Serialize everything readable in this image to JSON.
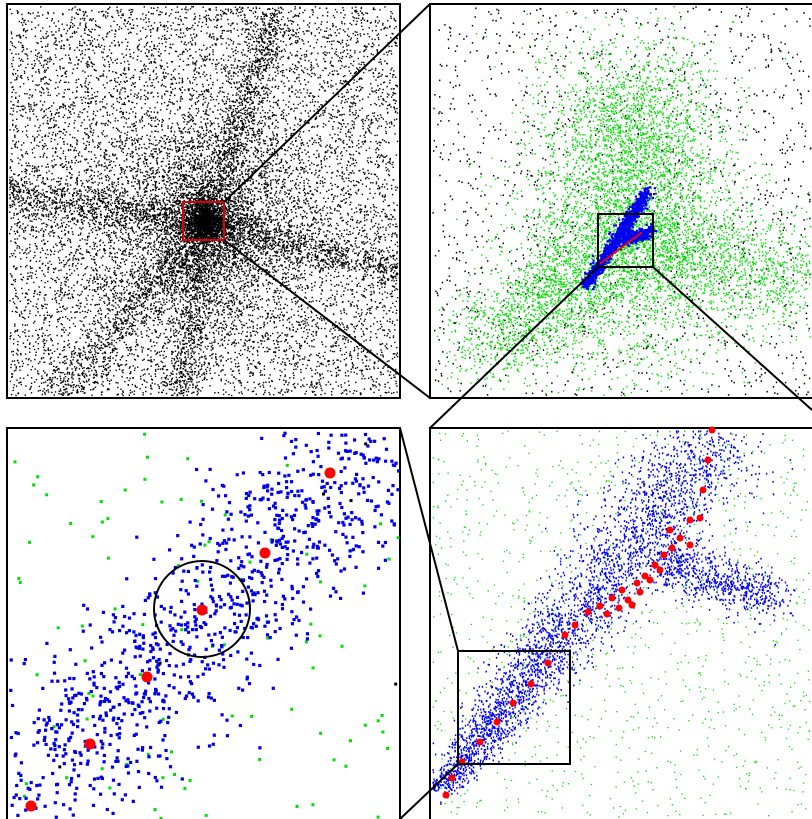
{
  "figure": {
    "description_visible_text": "",
    "colors": {
      "background": "#ffffff",
      "frame": "#000000",
      "dark_matter_particles": "#000000",
      "halo_particles": "#00e000",
      "filament_particles": "#0000ee",
      "substructure_markers": "#ff0000",
      "highlight_box": "#e00000"
    },
    "panels": [
      {
        "key": "top_left",
        "label_name": "full-simulation-panel",
        "particle_colors": [
          "dark_matter_particles"
        ],
        "has_zoom_box": true,
        "zoom_box_color": "highlight_box"
      },
      {
        "key": "top_right",
        "label_name": "zoom-level-1-panel",
        "particle_colors": [
          "dark_matter_particles",
          "halo_particles",
          "filament_particles",
          "substructure_markers"
        ],
        "has_zoom_box": true,
        "zoom_box_color": "frame"
      },
      {
        "key": "bottom_right",
        "label_name": "zoom-level-2-panel",
        "particle_colors": [
          "halo_particles",
          "filament_particles",
          "substructure_markers"
        ],
        "has_zoom_box": true,
        "zoom_box_color": "frame"
      },
      {
        "key": "bottom_left",
        "label_name": "zoom-level-3-panel",
        "particle_colors": [
          "dark_matter_particles",
          "halo_particles",
          "filament_particles",
          "substructure_markers"
        ],
        "has_circle_marker": true
      }
    ]
  }
}
